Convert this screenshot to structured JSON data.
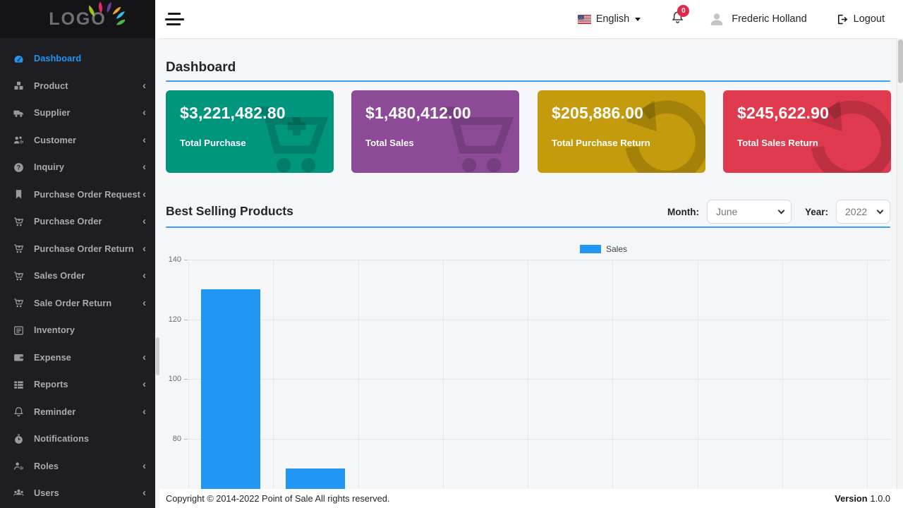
{
  "sidebar": {
    "logo_text": "LOGO",
    "items": [
      {
        "label": "Dashboard",
        "icon": "dashboard-icon",
        "active": true,
        "has_chevron": false
      },
      {
        "label": "Product",
        "icon": "cubes-icon",
        "active": false,
        "has_chevron": true
      },
      {
        "label": "Supplier",
        "icon": "truck-icon",
        "active": false,
        "has_chevron": true
      },
      {
        "label": "Customer",
        "icon": "customers-icon",
        "active": false,
        "has_chevron": true
      },
      {
        "label": "Inquiry",
        "icon": "question-circle-icon",
        "active": false,
        "has_chevron": true
      },
      {
        "label": "Purchase Order Request",
        "icon": "bookmark-icon",
        "active": false,
        "has_chevron": true
      },
      {
        "label": "Purchase Order",
        "icon": "cart-plus-icon",
        "active": false,
        "has_chevron": true
      },
      {
        "label": "Purchase Order Return",
        "icon": "cart-plus-icon",
        "active": false,
        "has_chevron": true
      },
      {
        "label": "Sales Order",
        "icon": "cart-plus-icon",
        "active": false,
        "has_chevron": true
      },
      {
        "label": "Sale Order Return",
        "icon": "cart-plus-icon",
        "active": false,
        "has_chevron": true
      },
      {
        "label": "Inventory",
        "icon": "list-icon",
        "active": false,
        "has_chevron": false
      },
      {
        "label": "Expense",
        "icon": "wallet-icon",
        "active": false,
        "has_chevron": true
      },
      {
        "label": "Reports",
        "icon": "table-rows-icon",
        "active": false,
        "has_chevron": true
      },
      {
        "label": "Reminder",
        "icon": "bell-icon",
        "active": false,
        "has_chevron": true
      },
      {
        "label": "Notifications",
        "icon": "stopwatch-icon",
        "active": false,
        "has_chevron": false
      },
      {
        "label": "Roles",
        "icon": "user-gear-icon",
        "active": false,
        "has_chevron": true
      },
      {
        "label": "Users",
        "icon": "users-icon",
        "active": false,
        "has_chevron": true
      }
    ]
  },
  "header": {
    "language": "English",
    "language_flag": "us-flag-icon",
    "notification_count": "0",
    "user_name": "Frederic Holland",
    "logout_label": "Logout"
  },
  "page": {
    "title": "Dashboard"
  },
  "cards": [
    {
      "amount": "$3,221,482.80",
      "label": "Total Purchase",
      "color": "#00957d",
      "icon": "cart-plus-watermark"
    },
    {
      "amount": "$1,480,412.00",
      "label": "Total Sales",
      "color": "#8c4a97",
      "icon": "cart-watermark"
    },
    {
      "amount": "$205,886.00",
      "label": "Total Purchase Return",
      "color": "#c49b0c",
      "icon": "rotate-left-watermark"
    },
    {
      "amount": "$245,622.90",
      "label": "Total Sales Return",
      "color": "#e03a4e",
      "icon": "rotate-left-watermark"
    }
  ],
  "best_selling": {
    "title": "Best Selling Products",
    "month_label": "Month:",
    "month_value": "June",
    "year_label": "Year:",
    "year_value": "2022"
  },
  "chart_data": {
    "type": "bar",
    "series": [
      {
        "name": "Sales",
        "color": "#2196f3",
        "values": [
          130,
          70
        ]
      }
    ],
    "yticks": [
      140,
      120,
      100,
      80
    ],
    "ylim": [
      0,
      140
    ],
    "legend_position": "top-center",
    "grid": true,
    "num_columns": 9,
    "x_labels_visible": false
  },
  "footer": {
    "copyright": "Copyright © 2014-2022 Point of Sale All rights reserved.",
    "version_label": "Version",
    "version_value": "1.0.0"
  }
}
